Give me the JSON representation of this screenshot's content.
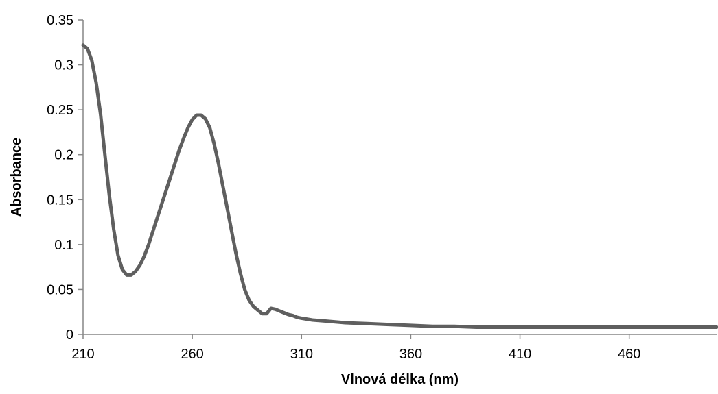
{
  "chart_data": {
    "type": "line",
    "title": "",
    "xlabel": "Vlnová délka (nm)",
    "ylabel": "Absorbance",
    "xlim": [
      210,
      500
    ],
    "ylim": [
      0,
      0.35
    ],
    "x_ticks": [
      210,
      260,
      310,
      360,
      410,
      460
    ],
    "x_tick_labels": [
      "210",
      "260",
      "310",
      "360",
      "410",
      "460"
    ],
    "y_ticks": [
      0,
      0.05,
      0.1,
      0.15,
      0.2,
      0.25,
      0.3,
      0.35
    ],
    "y_tick_labels": [
      "0",
      "0.05",
      "0.1",
      "0.15",
      "0.2",
      "0.25",
      "0.3",
      "0.35"
    ],
    "grid": false,
    "legend": "none",
    "series": [
      {
        "color": "#5f5f5f",
        "x": [
          210,
          212,
          214,
          216,
          218,
          220,
          222,
          224,
          226,
          228,
          230,
          232,
          234,
          236,
          238,
          240,
          242,
          244,
          246,
          248,
          250,
          252,
          254,
          256,
          258,
          260,
          262,
          264,
          266,
          268,
          270,
          272,
          274,
          276,
          278,
          280,
          282,
          284,
          286,
          288,
          290,
          292,
          294,
          296,
          298,
          300,
          302,
          304,
          306,
          308,
          310,
          315,
          320,
          325,
          330,
          340,
          350,
          360,
          370,
          380,
          390,
          400,
          410,
          420,
          430,
          440,
          450,
          460,
          470,
          480,
          490,
          500
        ],
        "y": [
          0.322,
          0.318,
          0.305,
          0.28,
          0.245,
          0.2,
          0.155,
          0.117,
          0.088,
          0.072,
          0.066,
          0.066,
          0.07,
          0.077,
          0.087,
          0.1,
          0.115,
          0.13,
          0.145,
          0.16,
          0.175,
          0.19,
          0.205,
          0.218,
          0.23,
          0.239,
          0.244,
          0.244,
          0.24,
          0.23,
          0.212,
          0.19,
          0.165,
          0.14,
          0.115,
          0.09,
          0.068,
          0.05,
          0.038,
          0.031,
          0.027,
          0.023,
          0.023,
          0.029,
          0.028,
          0.026,
          0.024,
          0.022,
          0.021,
          0.019,
          0.018,
          0.016,
          0.015,
          0.014,
          0.013,
          0.012,
          0.011,
          0.01,
          0.009,
          0.009,
          0.008,
          0.008,
          0.008,
          0.008,
          0.008,
          0.008,
          0.008,
          0.008,
          0.008,
          0.008,
          0.008,
          0.008
        ]
      }
    ]
  }
}
